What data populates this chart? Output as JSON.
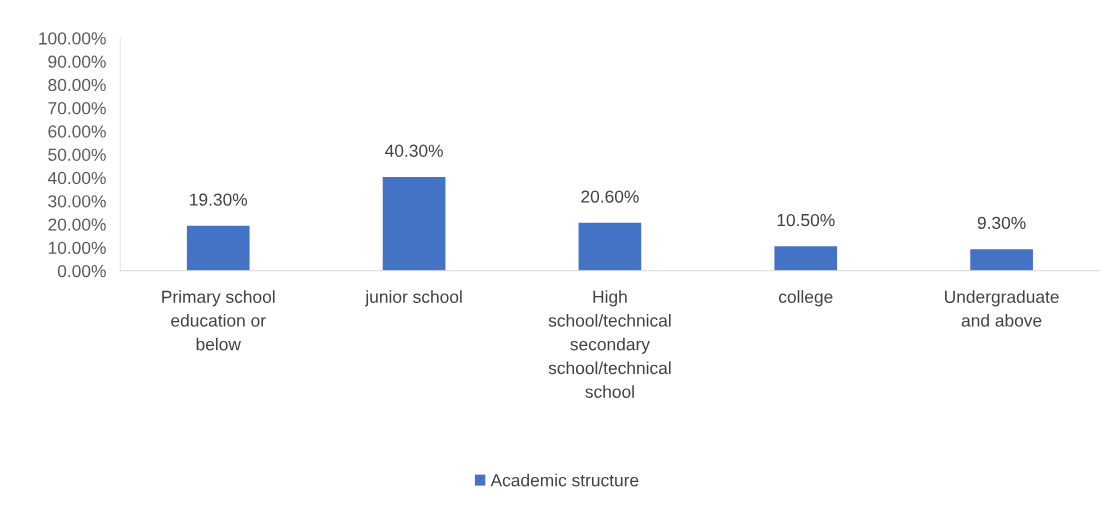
{
  "chart_data": {
    "type": "bar",
    "categories": [
      "Primary school education or below",
      "junior school",
      "High school/technical secondary school/technical school",
      "college",
      "Undergraduate and above"
    ],
    "series": [
      {
        "name": "Academic structure",
        "color": "#4472c4",
        "values": [
          19.3,
          40.3,
          20.6,
          10.5,
          9.3
        ],
        "value_labels": [
          "19.30%",
          "40.30%",
          "20.60%",
          "10.50%",
          "9.30%"
        ]
      }
    ],
    "ylim": [
      0,
      100
    ],
    "yticks": [
      {
        "value": 0,
        "label": "0.00%"
      },
      {
        "value": 10,
        "label": "10.00%"
      },
      {
        "value": 20,
        "label": "20.00%"
      },
      {
        "value": 30,
        "label": "30.00%"
      },
      {
        "value": 40,
        "label": "40.00%"
      },
      {
        "value": 50,
        "label": "50.00%"
      },
      {
        "value": 60,
        "label": "60.00%"
      },
      {
        "value": 70,
        "label": "70.00%"
      },
      {
        "value": 80,
        "label": "80.00%"
      },
      {
        "value": 90,
        "label": "90.00%"
      },
      {
        "value": 100,
        "label": "100.00%"
      }
    ],
    "grid": false,
    "legend": "bottom"
  }
}
